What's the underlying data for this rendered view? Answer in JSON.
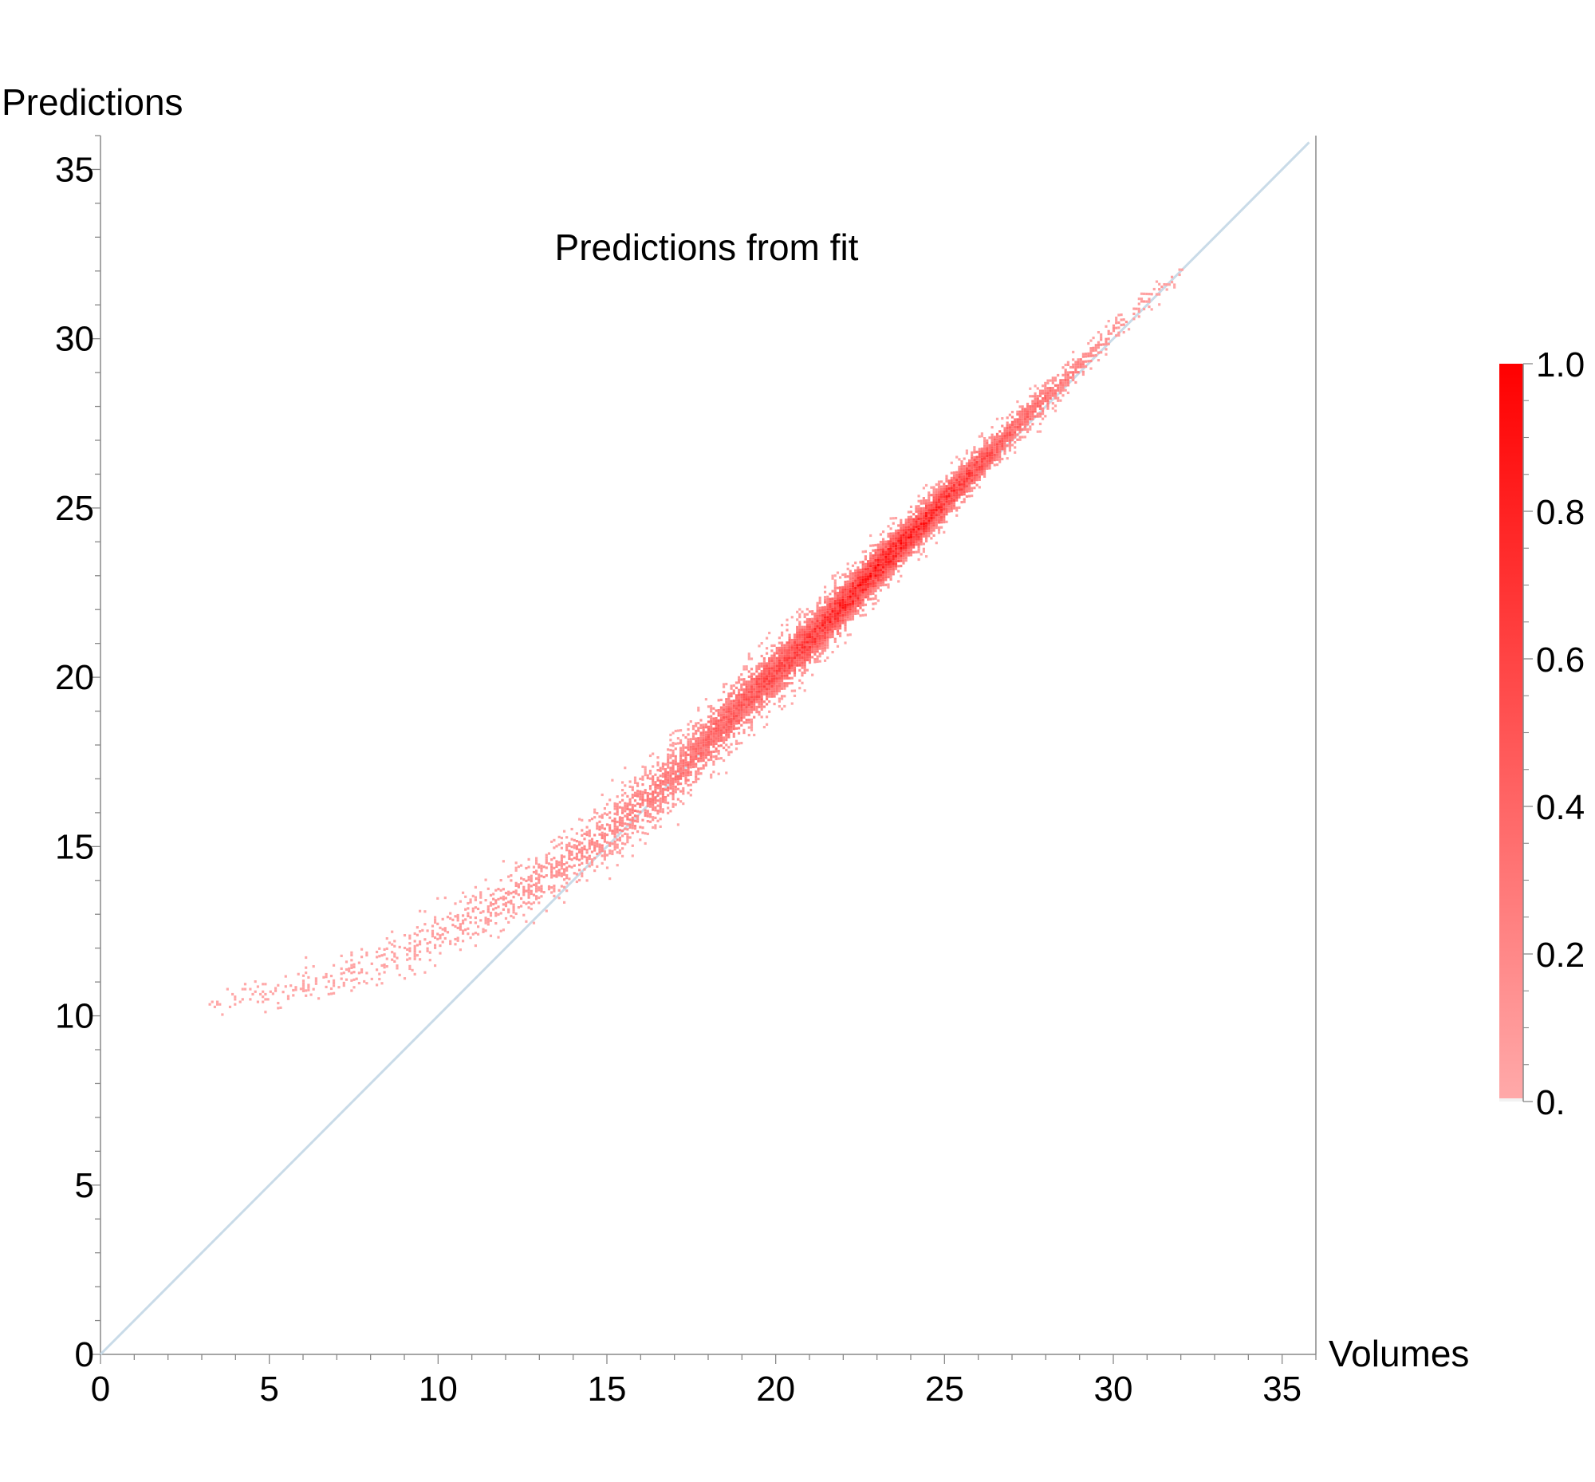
{
  "chart_data": {
    "type": "heatmap",
    "title": "Predictions from fit",
    "xlabel": "Volumes",
    "ylabel": "Predictions",
    "xlim": [
      0,
      36
    ],
    "ylim": [
      0,
      36
    ],
    "xticks": [
      0,
      5,
      10,
      15,
      20,
      25,
      30,
      35
    ],
    "yticks": [
      0,
      5,
      10,
      15,
      20,
      25,
      30,
      35
    ],
    "reference_line": {
      "type": "y = x",
      "color": "#c9dbe8"
    },
    "colorbar": {
      "ticks": [
        "0.",
        "0.2",
        "0.4",
        "0.6",
        "0.8",
        "1.0"
      ],
      "min_color": "#ffaaaa",
      "max_color": "#ff0000"
    },
    "density_ridge": [
      {
        "x": 3.2,
        "y": 10.3,
        "spread": 0.15,
        "density": 0.02
      },
      {
        "x": 5.0,
        "y": 10.6,
        "spread": 0.25,
        "density": 0.03
      },
      {
        "x": 7.0,
        "y": 11.1,
        "spread": 0.3,
        "density": 0.04
      },
      {
        "x": 9.0,
        "y": 11.9,
        "spread": 0.35,
        "density": 0.06
      },
      {
        "x": 11.0,
        "y": 12.9,
        "spread": 0.4,
        "density": 0.1
      },
      {
        "x": 13.0,
        "y": 14.0,
        "spread": 0.45,
        "density": 0.15
      },
      {
        "x": 15.0,
        "y": 15.4,
        "spread": 0.5,
        "density": 0.22
      },
      {
        "x": 17.0,
        "y": 17.1,
        "spread": 0.55,
        "density": 0.32
      },
      {
        "x": 19.0,
        "y": 19.2,
        "spread": 0.5,
        "density": 0.5
      },
      {
        "x": 21.0,
        "y": 21.1,
        "spread": 0.45,
        "density": 0.7
      },
      {
        "x": 23.0,
        "y": 23.2,
        "spread": 0.4,
        "density": 0.9
      },
      {
        "x": 25.0,
        "y": 25.2,
        "spread": 0.35,
        "density": 0.75
      },
      {
        "x": 27.0,
        "y": 27.3,
        "spread": 0.3,
        "density": 0.45
      },
      {
        "x": 29.0,
        "y": 29.2,
        "spread": 0.25,
        "density": 0.25
      },
      {
        "x": 30.5,
        "y": 30.7,
        "spread": 0.2,
        "density": 0.12
      },
      {
        "x": 32.0,
        "y": 32.0,
        "spread": 0.15,
        "density": 0.05
      }
    ]
  }
}
